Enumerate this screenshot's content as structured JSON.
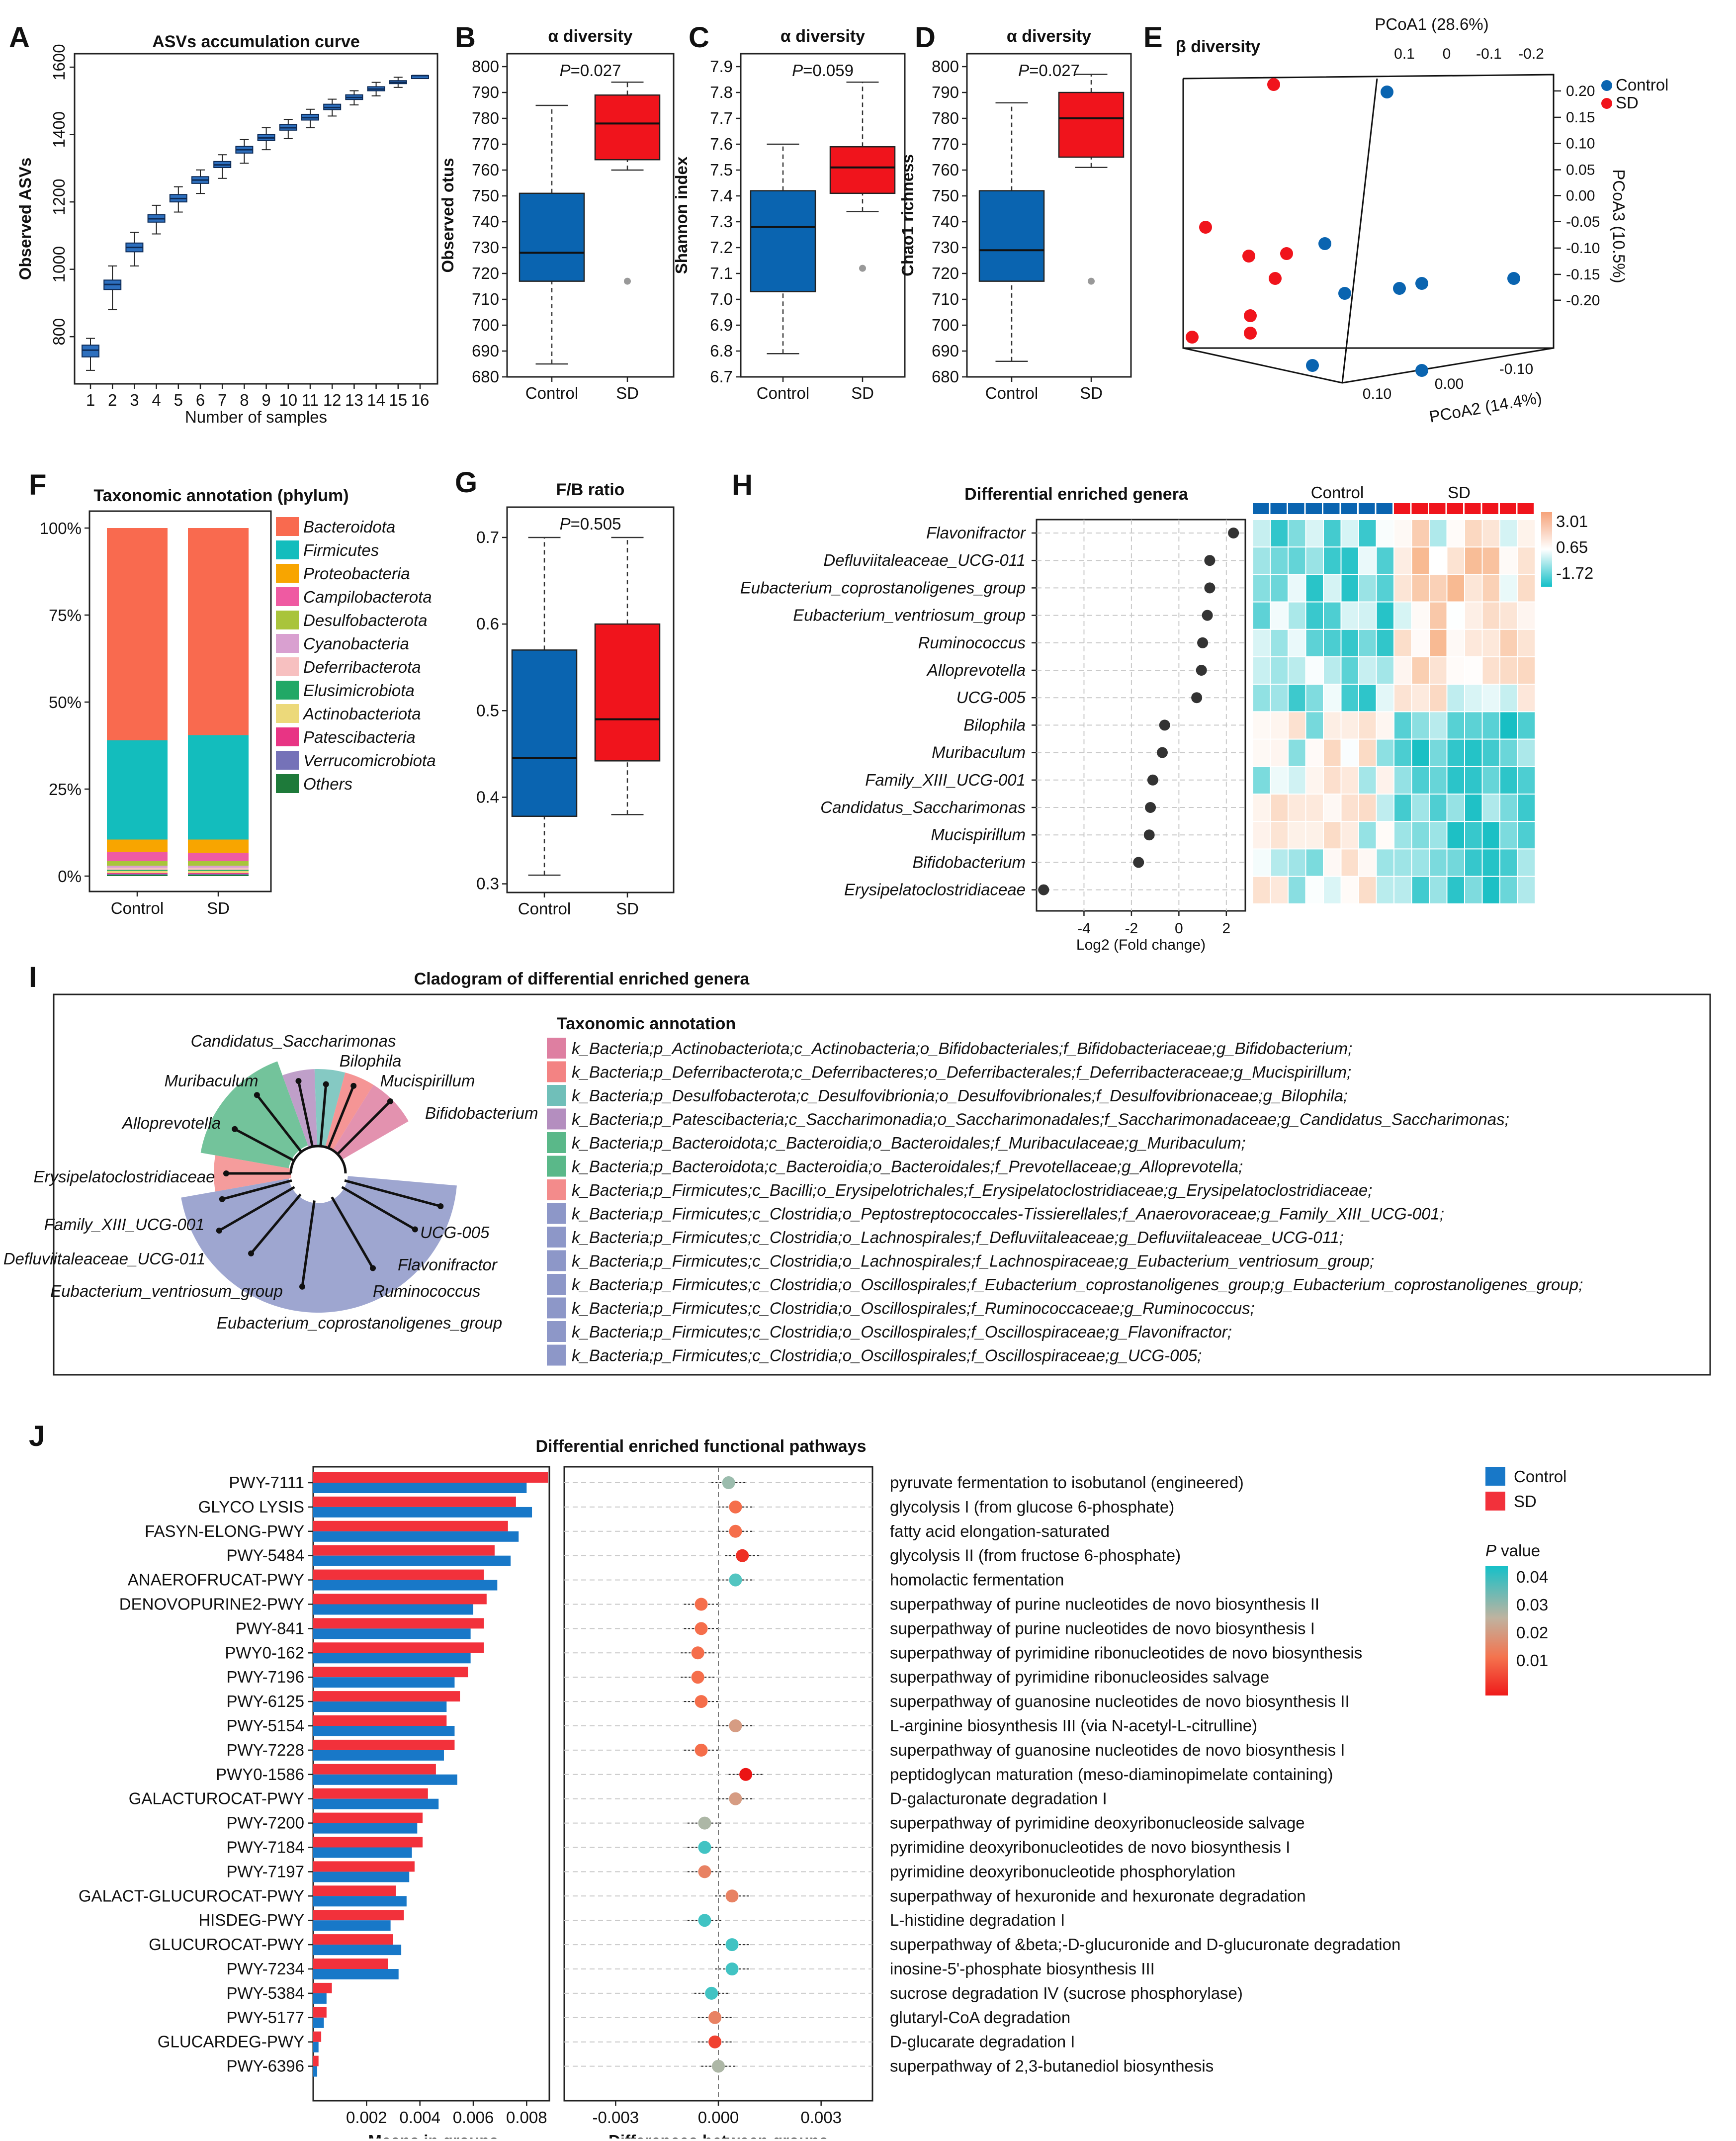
{
  "colors": {
    "control": "#0a64b0",
    "sd": "#f0141c",
    "sd_bar": "#f2313b",
    "control_bar": "#1878c8"
  },
  "panels": {
    "A": "A",
    "B": "B",
    "C": "C",
    "D": "D",
    "E": "E",
    "F": "F",
    "G": "G",
    "H": "H",
    "I": "I",
    "J": "J"
  },
  "chart_data": [
    {
      "id": "A",
      "type": "box",
      "title": "ASVs accumulation curve",
      "xlabel": "Number of samples",
      "ylabel": "Observed ASVs",
      "x": [
        1,
        2,
        3,
        4,
        5,
        6,
        7,
        8,
        9,
        10,
        11,
        12,
        13,
        14,
        15,
        16
      ],
      "median": [
        760,
        955,
        1065,
        1150,
        1210,
        1265,
        1310,
        1355,
        1390,
        1420,
        1450,
        1480,
        1510,
        1535,
        1555,
        1575
      ],
      "q1": [
        740,
        940,
        1052,
        1140,
        1200,
        1255,
        1302,
        1345,
        1382,
        1413,
        1443,
        1474,
        1504,
        1530,
        1552,
        1575
      ],
      "q3": [
        775,
        968,
        1078,
        1162,
        1222,
        1275,
        1320,
        1365,
        1400,
        1430,
        1460,
        1490,
        1518,
        1542,
        1560,
        1575
      ],
      "lo": [
        700,
        880,
        1010,
        1105,
        1170,
        1225,
        1270,
        1315,
        1355,
        1388,
        1420,
        1455,
        1488,
        1515,
        1540,
        1575
      ],
      "hi": [
        795,
        1010,
        1110,
        1190,
        1245,
        1295,
        1340,
        1385,
        1420,
        1445,
        1475,
        1505,
        1530,
        1555,
        1570,
        1575
      ],
      "ylim": [
        660,
        1640
      ],
      "yticks": [
        800,
        1000,
        1200,
        1400,
        1600
      ]
    },
    {
      "id": "B",
      "type": "box",
      "title": "α diversity",
      "ylabel": "Observed otus",
      "p": "P=0.027",
      "categories": [
        "Control",
        "SD"
      ],
      "boxes": [
        {
          "lo": 685,
          "q1": 717,
          "med": 728,
          "q3": 751,
          "hi": 785
        },
        {
          "lo": 760,
          "q1": 764,
          "med": 778,
          "q3": 789,
          "hi": 794,
          "out": 717
        }
      ],
      "ylim": [
        680,
        805
      ],
      "yticks": [
        680,
        690,
        700,
        710,
        720,
        730,
        740,
        750,
        760,
        770,
        780,
        790,
        800
      ]
    },
    {
      "id": "C",
      "type": "box",
      "title": "α diversity",
      "ylabel": "Shannon index",
      "p": "P=0.059",
      "categories": [
        "Control",
        "SD"
      ],
      "boxes": [
        {
          "lo": 6.79,
          "q1": 7.03,
          "med": 7.28,
          "q3": 7.42,
          "hi": 7.6
        },
        {
          "lo": 7.34,
          "q1": 7.41,
          "med": 7.51,
          "q3": 7.59,
          "hi": 7.84,
          "out": 7.12
        }
      ],
      "ylim": [
        6.7,
        7.95
      ],
      "yticks": [
        6.7,
        6.8,
        6.9,
        7.0,
        7.1,
        7.2,
        7.3,
        7.4,
        7.5,
        7.6,
        7.7,
        7.8,
        7.9
      ]
    },
    {
      "id": "D",
      "type": "box",
      "title": "α diversity",
      "ylabel": "Chao1 richness",
      "p": "P=0.027",
      "categories": [
        "Control",
        "SD"
      ],
      "boxes": [
        {
          "lo": 686,
          "q1": 717,
          "med": 729,
          "q3": 752,
          "hi": 786
        },
        {
          "lo": 761,
          "q1": 765,
          "med": 780,
          "q3": 790,
          "hi": 797,
          "out": 717
        }
      ],
      "ylim": [
        680,
        805
      ],
      "yticks": [
        680,
        690,
        700,
        710,
        720,
        730,
        740,
        750,
        760,
        770,
        780,
        790,
        800
      ]
    },
    {
      "id": "E",
      "type": "scatter",
      "title": "β diversity",
      "axis1": "PCoA1 (28.6%)",
      "axis2": "PCoA2 (14.4%)",
      "axis3": "PCoA3 (10.5%)",
      "legend": [
        "Control",
        "SD"
      ],
      "axis1_ticks": [
        "0.1",
        "0",
        "-0.1",
        "-0.2"
      ],
      "axis2_ticks": [
        "0.10",
        "0.00",
        "-0.10"
      ],
      "axis3_ticks": [
        "0.20",
        "0.15",
        "0.10",
        "0.05",
        "0.00",
        "-0.05",
        "-0.10",
        "-0.15",
        "-0.20"
      ]
    },
    {
      "id": "F",
      "type": "bar",
      "title": "Taxonomic annotation (phylum)",
      "categories": [
        "Control",
        "SD"
      ],
      "yticks": [
        "0%",
        "25%",
        "50%",
        "75%",
        "100%"
      ],
      "series": [
        {
          "name": "Others",
          "values": [
            0.4,
            0.4
          ]
        },
        {
          "name": "Verrucomicrobiota",
          "values": [
            0.2,
            0.2
          ]
        },
        {
          "name": "Patescibacteria",
          "values": [
            0.3,
            0.3
          ]
        },
        {
          "name": "Actinobacteriota",
          "values": [
            0.6,
            0.6
          ]
        },
        {
          "name": "Elusimicrobiota",
          "values": [
            0.3,
            0.3
          ]
        },
        {
          "name": "Deferribacterota",
          "values": [
            0.6,
            0.6
          ]
        },
        {
          "name": "Cyanobacteria",
          "values": [
            0.6,
            0.6
          ]
        },
        {
          "name": "Desulfobacterota",
          "values": [
            1.3,
            1.3
          ]
        },
        {
          "name": "Campilobacterota",
          "values": [
            2.6,
            2.4
          ]
        },
        {
          "name": "Proteobacteria",
          "values": [
            3.6,
            3.8
          ]
        },
        {
          "name": "Firmicutes",
          "values": [
            28.5,
            30.0
          ]
        },
        {
          "name": "Bacteroidota",
          "values": [
            61.0,
            59.5
          ]
        }
      ],
      "legend": [
        "Bacteroidota",
        "Firmicutes",
        "Proteobacteria",
        "Campilobacterota",
        "Desulfobacterota",
        "Cyanobacteria",
        "Deferribacterota",
        "Elusimicrobiota",
        "Actinobacteriota",
        "Patescibacteria",
        "Verrucomicrobiota",
        "Others"
      ],
      "colors": [
        "#f96a4f",
        "#13bdbd",
        "#f8a500",
        "#ef5aa2",
        "#a9c43b",
        "#d9a0d0",
        "#f7c0c0",
        "#21a866",
        "#ecd97a",
        "#e83484",
        "#7572b8",
        "#1e7a3a"
      ]
    },
    {
      "id": "G",
      "type": "box",
      "title": "F/B ratio",
      "p": "P=0.505",
      "categories": [
        "Control",
        "SD"
      ],
      "boxes": [
        {
          "lo": 0.31,
          "q1": 0.378,
          "med": 0.445,
          "q3": 0.57,
          "hi": 0.7
        },
        {
          "lo": 0.38,
          "q1": 0.442,
          "med": 0.49,
          "q3": 0.6,
          "hi": 0.7
        }
      ],
      "ylim": [
        0.29,
        0.735
      ],
      "yticks": [
        0.3,
        0.4,
        0.5,
        0.6,
        0.7
      ]
    },
    {
      "id": "H",
      "type": "scatter",
      "title": "Differential enriched genera",
      "xlabel": "Log2 (Fold change)",
      "genera": [
        "Flavonifractor",
        "Defluviitaleaceae_UCG-011",
        "Eubacterium_coprostanoligenes_group",
        "Eubacterium_ventriosum_group",
        "Ruminococcus",
        "Alloprevotella",
        "UCG-005",
        "Bilophila",
        "Muribaculum",
        "Family_XIII_UCG-001",
        "Candidatus_Saccharimonas",
        "Mucispirillum",
        "Bifidobacterium",
        "Erysipelatoclostridiaceae"
      ],
      "values": [
        2.3,
        1.3,
        1.3,
        1.2,
        1.0,
        0.95,
        0.75,
        -0.6,
        -0.7,
        -1.1,
        -1.2,
        -1.25,
        -1.7,
        -5.7
      ],
      "xlim": [
        -6,
        2.8
      ],
      "xticks": [
        -4,
        -2,
        0,
        2
      ],
      "heatmap_groups": [
        "Control",
        "SD"
      ],
      "color_scale": [
        "3.01",
        "0.65",
        "-1.72"
      ]
    },
    {
      "id": "J",
      "type": "bar",
      "title": "Differential enriched functional pathways",
      "xlabel_left": "Means in groups",
      "xlabel_right": "Differences between groups",
      "left_xticks": [
        "0.002",
        "0.004",
        "0.006",
        "0.008"
      ],
      "right_xticks": [
        "-0.003",
        "0.000",
        "0.003"
      ],
      "legend": [
        "Control",
        "SD"
      ],
      "pvalue_title": "P value",
      "pvalue_ticks": [
        "0.04",
        "0.03",
        "0.02",
        "0.01"
      ],
      "pathways": [
        {
          "id": "PWY-7111",
          "desc": "pyruvate fermentation to isobutanol (engineered)",
          "sd": 0.0088,
          "control": 0.008,
          "diff": 0.0003,
          "p": 0.03
        },
        {
          "id": "GLYCO LYSIS",
          "desc": "glycolysis I (from glucose 6-phosphate)",
          "sd": 0.0076,
          "control": 0.0082,
          "diff": 0.0005,
          "p": 0.015
        },
        {
          "id": "FASYN-ELONG-PWY",
          "desc": "fatty acid elongation-saturated",
          "sd": 0.0073,
          "control": 0.0077,
          "diff": 0.0005,
          "p": 0.015
        },
        {
          "id": "PWY-5484",
          "desc": "glycolysis II (from fructose 6-phosphate)",
          "sd": 0.0068,
          "control": 0.0074,
          "diff": 0.0007,
          "p": 0.008
        },
        {
          "id": "ANAEROFRUCAT-PWY",
          "desc": "homolactic fermentation",
          "sd": 0.0064,
          "control": 0.0069,
          "diff": 0.0005,
          "p": 0.038
        },
        {
          "id": "DENOVOPURINE2-PWY",
          "desc": "superpathway of purine nucleotides de novo biosynthesis II",
          "sd": 0.0065,
          "control": 0.006,
          "diff": -0.0005,
          "p": 0.015
        },
        {
          "id": "PWY-841",
          "desc": "superpathway of purine nucleotides de novo biosynthesis I",
          "sd": 0.0064,
          "control": 0.0059,
          "diff": -0.0005,
          "p": 0.015
        },
        {
          "id": "PWY0-162",
          "desc": "superpathway of pyrimidine ribonucleotides de novo biosynthesis",
          "sd": 0.0064,
          "control": 0.0059,
          "diff": -0.0006,
          "p": 0.015
        },
        {
          "id": "PWY-7196",
          "desc": "superpathway of pyrimidine ribonucleosides salvage",
          "sd": 0.0058,
          "control": 0.0053,
          "diff": -0.0006,
          "p": 0.015
        },
        {
          "id": "PWY-6125",
          "desc": "superpathway of guanosine nucleotides de novo biosynthesis II",
          "sd": 0.0055,
          "control": 0.005,
          "diff": -0.0005,
          "p": 0.015
        },
        {
          "id": "PWY-5154",
          "desc": "L-arginine biosynthesis III (via N-acetyl-L-citrulline)",
          "sd": 0.005,
          "control": 0.0053,
          "diff": 0.0005,
          "p": 0.022
        },
        {
          "id": "PWY-7228",
          "desc": "superpathway of guanosine nucleotides de novo biosynthesis I",
          "sd": 0.0053,
          "control": 0.0049,
          "diff": -0.0005,
          "p": 0.015
        },
        {
          "id": "PWY0-1586",
          "desc": "peptidoglycan maturation (meso-diaminopimelate containing)",
          "sd": 0.0046,
          "control": 0.0054,
          "diff": 0.0008,
          "p": 0.005
        },
        {
          "id": "GALACTUROCAT-PWY",
          "desc": "D-galacturonate degradation I",
          "sd": 0.0043,
          "control": 0.0047,
          "diff": 0.0005,
          "p": 0.022
        },
        {
          "id": "PWY-7200",
          "desc": "superpathway of pyrimidine deoxyribonucleoside salvage",
          "sd": 0.0041,
          "control": 0.0039,
          "diff": -0.0004,
          "p": 0.028
        },
        {
          "id": "PWY-7184",
          "desc": "pyrimidine deoxyribonucleotides de novo biosynthesis I",
          "sd": 0.0041,
          "control": 0.0037,
          "diff": -0.0004,
          "p": 0.04
        },
        {
          "id": "PWY-7197",
          "desc": "pyrimidine deoxyribonucleotide phosphorylation",
          "sd": 0.0038,
          "control": 0.0036,
          "diff": -0.0004,
          "p": 0.018
        },
        {
          "id": "GALACT-GLUCUROCAT-PWY",
          "desc": "superpathway of hexuronide and hexuronate degradation",
          "sd": 0.0031,
          "control": 0.0035,
          "diff": 0.0004,
          "p": 0.018
        },
        {
          "id": "HISDEG-PWY",
          "desc": "L-histidine degradation I",
          "sd": 0.0034,
          "control": 0.0029,
          "diff": -0.0004,
          "p": 0.04
        },
        {
          "id": "GLUCUROCAT-PWY",
          "desc": "superpathway of &beta;-D-glucuronide and D-glucuronate degradation",
          "sd": 0.003,
          "control": 0.0033,
          "diff": 0.0004,
          "p": 0.04
        },
        {
          "id": "PWY-7234",
          "desc": "inosine-5'-phosphate biosynthesis III",
          "sd": 0.0028,
          "control": 0.0032,
          "diff": 0.0004,
          "p": 0.04
        },
        {
          "id": "PWY-5384",
          "desc": "sucrose degradation IV (sucrose phosphorylase)",
          "sd": 0.0007,
          "control": 0.0005,
          "diff": -0.0002,
          "p": 0.04
        },
        {
          "id": "PWY-5177",
          "desc": "glutaryl-CoA degradation",
          "sd": 0.0005,
          "control": 0.0004,
          "diff": -0.0001,
          "p": 0.018
        },
        {
          "id": "GLUCARDEG-PWY",
          "desc": "D-glucarate degradation I",
          "sd": 0.0003,
          "control": 0.0002,
          "diff": -0.0001,
          "p": 0.01
        },
        {
          "id": "PWY-6396",
          "desc": "superpathway of 2,3-butanediol biosynthesis",
          "sd": 0.0002,
          "control": 0.00015,
          "diff": 0.0,
          "p": 0.028
        }
      ]
    }
  ],
  "panel_e_points": {
    "control": [
      [
        2790,
        185
      ],
      [
        2665,
        490
      ],
      [
        2705,
        590
      ],
      [
        2815,
        580
      ],
      [
        2860,
        570
      ],
      [
        3045,
        560
      ],
      [
        2640,
        735
      ],
      [
        2860,
        745
      ]
    ],
    "sd": [
      [
        2562,
        170
      ],
      [
        2425,
        457
      ],
      [
        2512,
        515
      ],
      [
        2588,
        510
      ],
      [
        2565,
        560
      ],
      [
        2515,
        635
      ],
      [
        2515,
        670
      ],
      [
        2398,
        678
      ]
    ]
  },
  "panel_i": {
    "title": "Cladogram of differential enriched genera",
    "annotation_title": "Taxonomic annotation",
    "tree_labels": [
      "Candidatus_Saccharimonas",
      "Bilophila",
      "Mucispirillum",
      "Bifidobacterium",
      "Muribaculum",
      "Alloprevotella",
      "Erysipelatoclostridiaceae",
      "Family_XIII_UCG-001",
      "Defluviitaleaceae_UCG-011",
      "Eubacterium_ventriosum_group",
      "Eubacterium_coprostanoligenes_group",
      "Ruminococcus",
      "Flavonifractor",
      "UCG-005"
    ],
    "annotations": [
      {
        "color": "#de7fa1",
        "text": "k_Bacteria;p_Actinobacteriota;c_Actinobacteria;o_Bifidobacteriales;f_Bifidobacteriaceae;g_Bifidobacterium;"
      },
      {
        "color": "#f38383",
        "text": "k_Bacteria;p_Deferribacterota;c_Deferribacteres;o_Deferribacterales;f_Deferribacteraceae;g_Mucispirillum;"
      },
      {
        "color": "#70bfb9",
        "text": "k_Bacteria;p_Desulfobacterota;c_Desulfovibrionia;o_Desulfovibrionales;f_Desulfovibrionaceae;g_Bilophila;"
      },
      {
        "color": "#b48ebf",
        "text": "k_Bacteria;p_Patescibacteria;c_Saccharimonadia;o_Saccharimonadales;f_Saccharimonadaceae;g_Candidatus_Saccharimonas;"
      },
      {
        "color": "#5ab889",
        "text": "k_Bacteria;p_Bacteroidota;c_Bacteroidia;o_Bacteroidales;f_Muribaculaceae;g_Muribaculum;"
      },
      {
        "color": "#5ab889",
        "text": "k_Bacteria;p_Bacteroidota;c_Bacteroidia;o_Bacteroidales;f_Prevotellaceae;g_Alloprevotella;"
      },
      {
        "color": "#f38b8b",
        "text": "k_Bacteria;p_Firmicutes;c_Bacilli;o_Erysipelotrichales;f_Erysipelatoclostridiaceae;g_Erysipelatoclostridiaceae;"
      },
      {
        "color": "#8d97c8",
        "text": "k_Bacteria;p_Firmicutes;c_Clostridia;o_Peptostreptococcales-Tissierellales;f_Anaerovoraceae;g_Family_XIII_UCG-001;"
      },
      {
        "color": "#8d97c8",
        "text": "k_Bacteria;p_Firmicutes;c_Clostridia;o_Lachnospirales;f_Defluviitaleaceae;g_Defluviitaleaceae_UCG-011;"
      },
      {
        "color": "#8d97c8",
        "text": "k_Bacteria;p_Firmicutes;c_Clostridia;o_Lachnospirales;f_Lachnospiraceae;g_Eubacterium_ventriosum_group;"
      },
      {
        "color": "#8d97c8",
        "text": "k_Bacteria;p_Firmicutes;c_Clostridia;o_Oscillospirales;f_Eubacterium_coprostanoligenes_group;g_Eubacterium_coprostanoligenes_group;"
      },
      {
        "color": "#8d97c8",
        "text": "k_Bacteria;p_Firmicutes;c_Clostridia;o_Oscillospirales;f_Ruminococcaceae;g_Ruminococcus;"
      },
      {
        "color": "#8d97c8",
        "text": "k_Bacteria;p_Firmicutes;c_Clostridia;o_Oscillospirales;f_Oscillospiraceae;g_Flavonifractor;"
      },
      {
        "color": "#8d97c8",
        "text": "k_Bacteria;p_Firmicutes;c_Clostridia;o_Oscillospirales;f_Oscillospiraceae;g_UCG-005;"
      }
    ]
  }
}
